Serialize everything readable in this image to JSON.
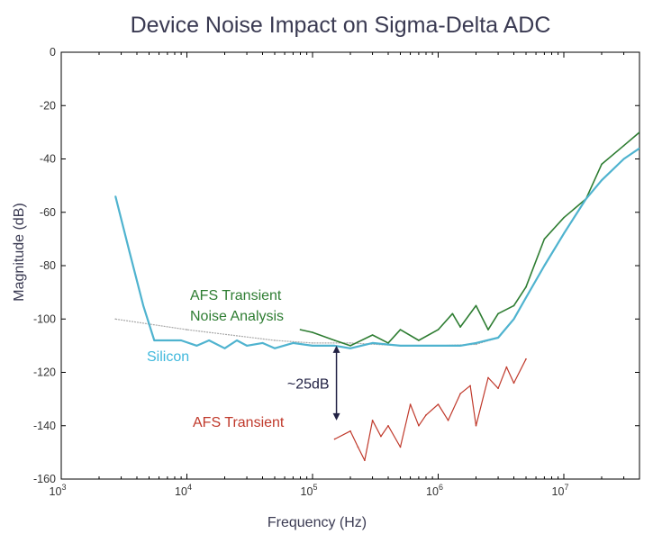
{
  "chart_data": {
    "type": "line",
    "title": "Device Noise Impact on Sigma-Delta ADC",
    "xlabel": "Frequency (Hz)",
    "ylabel": "Magnitude (dB)",
    "x_scale": "log",
    "xlim": [
      1000,
      40000000
    ],
    "ylim": [
      -160,
      0
    ],
    "x_ticks": [
      {
        "base": "10",
        "exp": "3",
        "value": 1000
      },
      {
        "base": "10",
        "exp": "4",
        "value": 10000
      },
      {
        "base": "10",
        "exp": "5",
        "value": 100000
      },
      {
        "base": "10",
        "exp": "6",
        "value": 1000000
      },
      {
        "base": "10",
        "exp": "7",
        "value": 10000000
      }
    ],
    "y_ticks": [
      {
        "value": 0,
        "label": "0"
      },
      {
        "value": -20,
        "label": "-20"
      },
      {
        "value": -40,
        "label": "-40"
      },
      {
        "value": -60,
        "label": "-60"
      },
      {
        "value": -80,
        "label": "-80"
      },
      {
        "value": -100,
        "label": "-100"
      },
      {
        "value": -120,
        "label": "-120"
      },
      {
        "value": -140,
        "label": "-140"
      },
      {
        "value": -160,
        "label": "-160"
      }
    ],
    "series": [
      {
        "name": "Silicon",
        "color": "#4fb3cf",
        "x": [
          2700,
          3500,
          4500,
          5500,
          7000,
          9000,
          12000,
          15000,
          20000,
          25000,
          30000,
          40000,
          50000,
          70000,
          100000,
          150000,
          200000,
          300000,
          500000,
          700000,
          1000000,
          1500000,
          2000000,
          3000000,
          4000000,
          5000000,
          7000000,
          10000000,
          15000000,
          20000000,
          30000000,
          40000000
        ],
        "y": [
          -54,
          -75,
          -95,
          -108,
          -108,
          -108,
          -110,
          -108,
          -111,
          -108,
          -110,
          -109,
          -111,
          -109,
          -110,
          -110,
          -111,
          -109,
          -110,
          -110,
          -110,
          -110,
          -109,
          -107,
          -100,
          -92,
          -80,
          -68,
          -55,
          -48,
          -40,
          -36
        ]
      },
      {
        "name": "AFS Transient Noise Analysis",
        "color": "#2e7d32",
        "x": [
          80000,
          100000,
          150000,
          200000,
          300000,
          400000,
          500000,
          700000,
          1000000,
          1300000,
          1500000,
          2000000,
          2500000,
          3000000,
          4000000,
          5000000,
          7000000,
          10000000,
          15000000,
          20000000,
          30000000,
          40000000
        ],
        "y": [
          -104,
          -105,
          -108,
          -110,
          -106,
          -109,
          -104,
          -108,
          -104,
          -98,
          -103,
          -95,
          -104,
          -98,
          -95,
          -88,
          -70,
          -62,
          -55,
          -42,
          -35,
          -30
        ]
      },
      {
        "name": "AFS Transient",
        "color": "#c0392b",
        "x": [
          150000,
          200000,
          230000,
          260000,
          300000,
          350000,
          400000,
          500000,
          600000,
          700000,
          800000,
          1000000,
          1200000,
          1500000,
          1800000,
          2000000,
          2500000,
          3000000,
          3500000,
          4000000,
          5000000
        ],
        "y": [
          -145,
          -142,
          -148,
          -153,
          -138,
          -144,
          -140,
          -148,
          -132,
          -140,
          -136,
          -132,
          -138,
          -128,
          -125,
          -140,
          -122,
          -126,
          -118,
          -124,
          -115
        ]
      },
      {
        "name": "",
        "color": "#a8a8a8",
        "x": [
          2700,
          10000,
          50000,
          100000,
          200000,
          500000,
          1000000,
          2000000,
          3000000
        ],
        "y": [
          -100,
          -104,
          -108,
          -109,
          -109,
          -110,
          -110,
          -109.5,
          -107
        ]
      }
    ],
    "annotations": [
      {
        "text": "Silicon",
        "color": "#3fb8dc"
      },
      {
        "text": "AFS Transient",
        "color": "#c0392b"
      },
      {
        "text": "AFS Transient",
        "color": "#2e7d32"
      },
      {
        "text": "Noise Analysis",
        "color": "#2e7d32"
      },
      {
        "text": "~25dB",
        "color": "#222244",
        "from": -110,
        "to": -138
      }
    ]
  }
}
